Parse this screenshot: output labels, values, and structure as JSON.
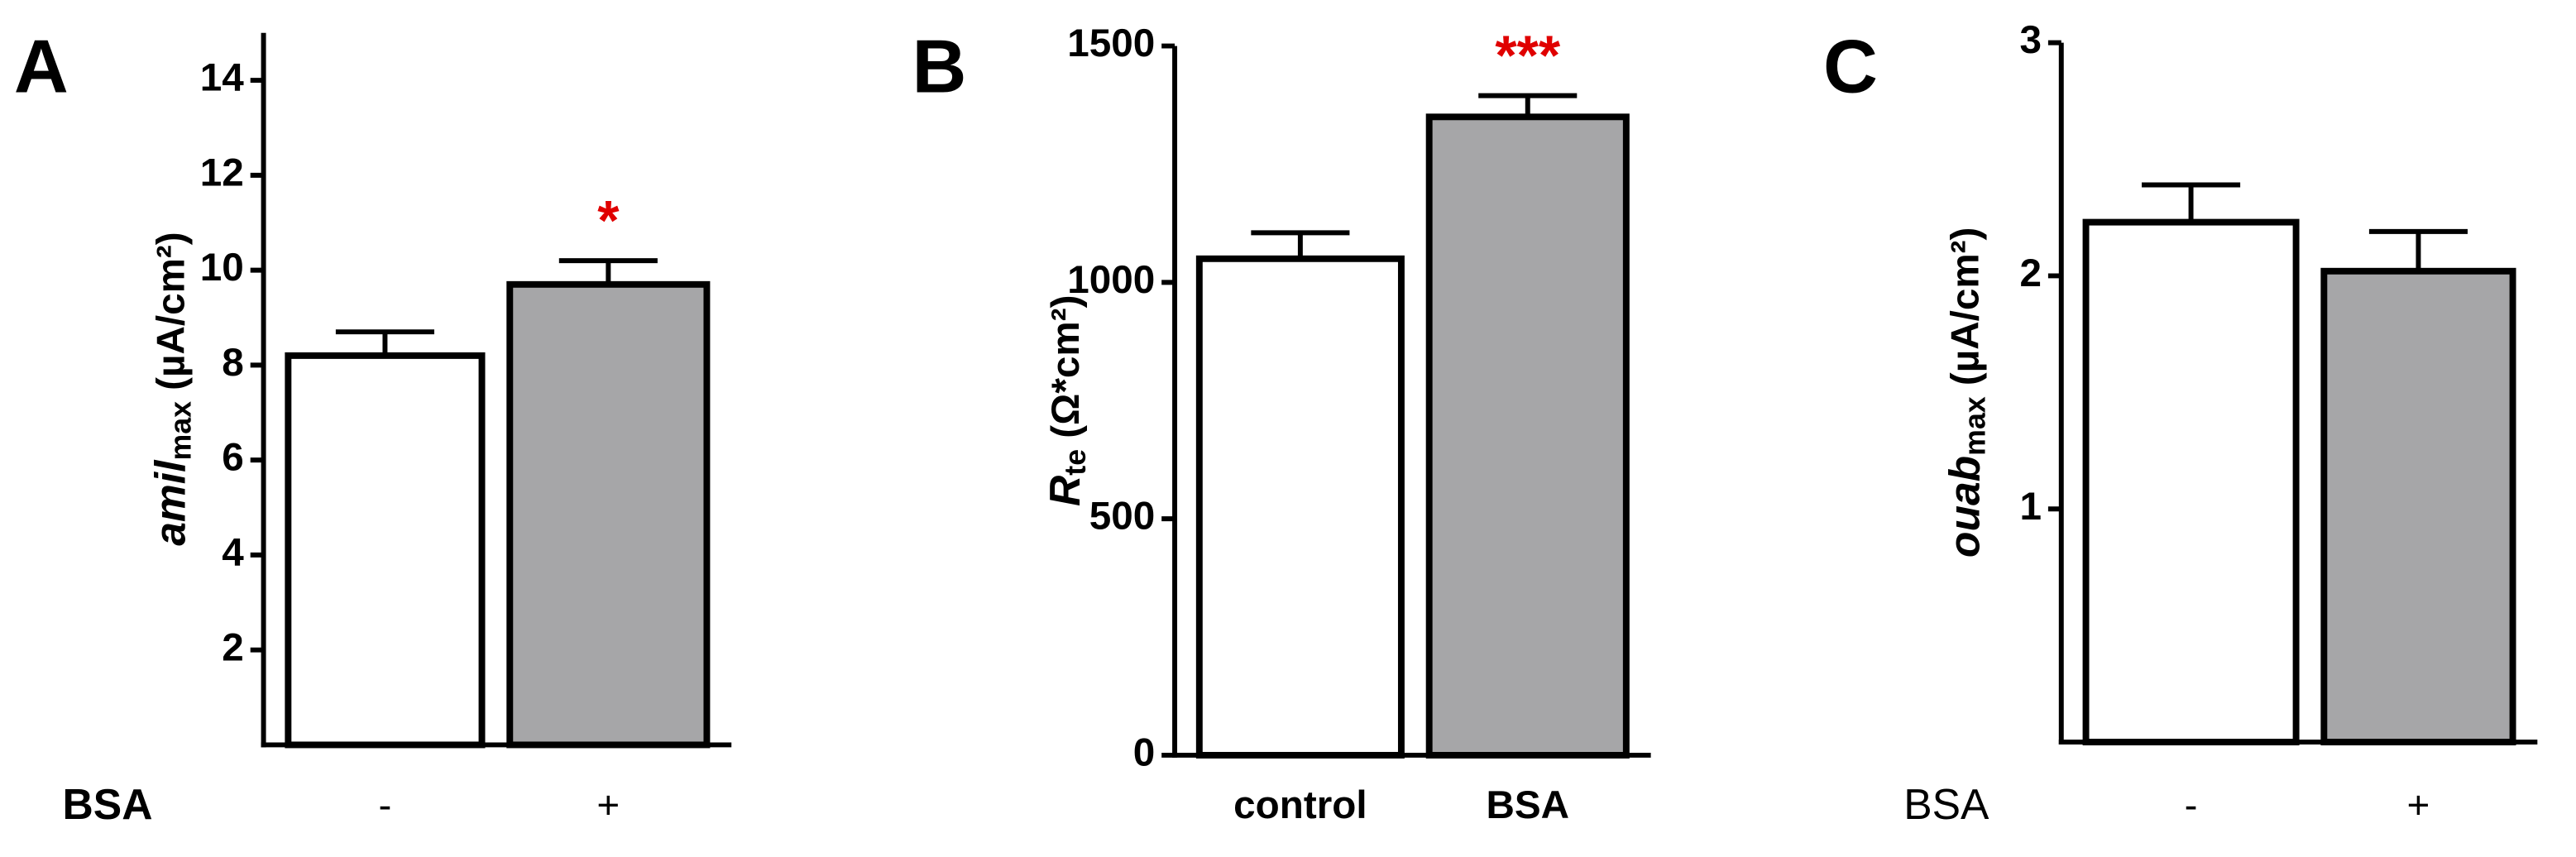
{
  "chart_data": [
    {
      "type": "bar",
      "panel": "A",
      "ylabel": "amil",
      "ylabel_sub": "max",
      "ylabel_unit": " (µA/cm²)",
      "xlabel": "BSA",
      "categories": [
        "-",
        "+"
      ],
      "values": [
        8.2,
        9.7
      ],
      "errors": [
        0.5,
        0.5
      ],
      "significance_labels": [
        null,
        "*"
      ],
      "colors": [
        "#ffffff",
        "#a6a6a8"
      ],
      "ylim": [
        0,
        15
      ],
      "yticks": [
        2,
        4,
        6,
        8,
        10,
        12,
        14
      ]
    },
    {
      "type": "bar",
      "panel": "B",
      "ylabel": "R",
      "ylabel_sub": "te",
      "ylabel_unit": " (Ω*cm²)",
      "categories": [
        "control",
        "BSA"
      ],
      "values": [
        1050,
        1350
      ],
      "errors": [
        55,
        45
      ],
      "significance_labels": [
        null,
        "***"
      ],
      "colors": [
        "#ffffff",
        "#a6a6a8"
      ],
      "ylim": [
        0,
        1500
      ],
      "yticks": [
        0,
        500,
        1000,
        1500
      ]
    },
    {
      "type": "bar",
      "panel": "C",
      "ylabel": "ouab",
      "ylabel_sub": "max",
      "ylabel_unit": " (µA/cm²)",
      "xlabel": "BSA",
      "categories": [
        "-",
        "+"
      ],
      "values": [
        2.23,
        2.02
      ],
      "errors": [
        0.16,
        0.17
      ],
      "colors": [
        "#ffffff",
        "#a6a6a8"
      ],
      "ylim": [
        0,
        3
      ],
      "yticks": [
        1,
        2,
        3
      ]
    }
  ]
}
